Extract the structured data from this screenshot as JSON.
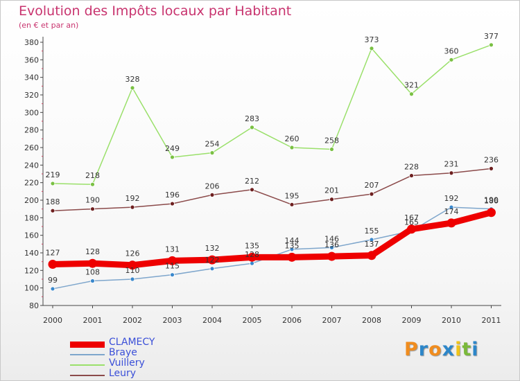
{
  "title": "Evolution des Impôts locaux par Habitant",
  "subtitle": "(en € et par an)",
  "logo_text": "Proxiti",
  "logo_letters": [
    {
      "ch": "P",
      "color": "#f08c1e"
    },
    {
      "ch": "r",
      "color": "#2c86c9"
    },
    {
      "ch": "o",
      "color": "#f08c1e"
    },
    {
      "ch": "x",
      "color": "#2c86c9"
    },
    {
      "ch": "i",
      "color": "#f0c419"
    },
    {
      "ch": "t",
      "color": "#7ab93a"
    },
    {
      "ch": "i",
      "color": "#2c86c9"
    }
  ],
  "chart_data": {
    "type": "line",
    "x": [
      "2000",
      "2001",
      "2002",
      "2003",
      "2004",
      "2005",
      "2006",
      "2007",
      "2008",
      "2009",
      "2010",
      "2011"
    ],
    "ylim": [
      80,
      380
    ],
    "yticks": [
      80,
      100,
      120,
      140,
      160,
      180,
      200,
      220,
      240,
      260,
      280,
      300,
      320,
      340,
      360,
      380
    ],
    "grid": false,
    "legend_position": "bottom-left",
    "series": [
      {
        "name": "CLAMECY",
        "color": "#ee0000",
        "marker": "#ee0000",
        "values": [
          127,
          128,
          126,
          131,
          132,
          135,
          135,
          136,
          137,
          167,
          174,
          186
        ],
        "labels": [
          "127",
          "128",
          "126",
          "131",
          "132",
          "135",
          "135",
          "136",
          "137",
          "167",
          "174",
          "186"
        ]
      },
      {
        "name": "Braye",
        "color": "#7ea6cc",
        "marker": "#3a88cc",
        "values": [
          99,
          108,
          110,
          115,
          122,
          128,
          144,
          146,
          155,
          165,
          192,
          190
        ],
        "labels": [
          "99",
          "108",
          "110",
          "115",
          "122",
          "128",
          "144",
          "146",
          "155",
          "165",
          "192",
          "190"
        ]
      },
      {
        "name": "Vuillery",
        "color": "#9ae06a",
        "marker": "#7ac043",
        "values": [
          219,
          218,
          328,
          249,
          254,
          283,
          260,
          258,
          373,
          321,
          360,
          377
        ],
        "labels": [
          "219",
          "218",
          "328",
          "249",
          "254",
          "283",
          "260",
          "258",
          "373",
          "321",
          "360",
          "377"
        ]
      },
      {
        "name": "Leury",
        "color": "#8b4a4a",
        "marker": "#6e2020",
        "values": [
          188,
          190,
          192,
          196,
          206,
          212,
          195,
          201,
          207,
          228,
          231,
          236
        ],
        "labels": [
          "188",
          "190",
          "192",
          "196",
          "206",
          "212",
          "195",
          "201",
          "207",
          "228",
          "231",
          "236"
        ]
      }
    ]
  }
}
